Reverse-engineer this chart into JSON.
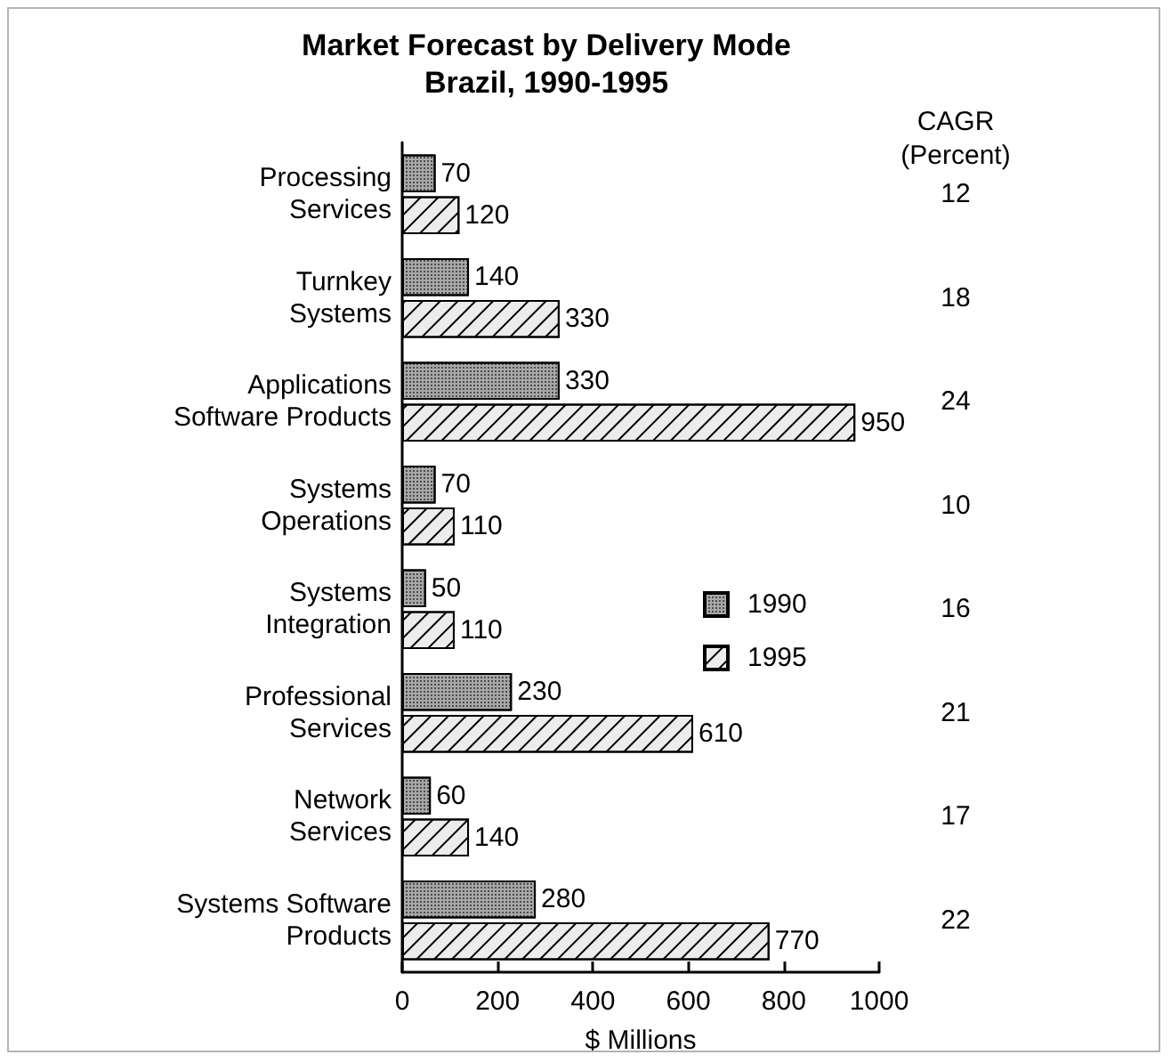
{
  "chart_data": {
    "type": "bar",
    "orientation": "horizontal",
    "title": "Market Forecast by Delivery Mode",
    "subtitle": "Brazil, 1990-1995",
    "categories": [
      "Processing\nServices",
      "Turnkey\nSystems",
      "Applications\nSoftware Products",
      "Systems\nOperations",
      "Systems\nIntegration",
      "Professional\nServices",
      "Network\nServices",
      "Systems Software\nProducts"
    ],
    "series": [
      {
        "name": "1990",
        "color": "#a8a8a8",
        "values": [
          70,
          140,
          330,
          70,
          50,
          230,
          60,
          280
        ]
      },
      {
        "name": "1995",
        "color": "#ececec",
        "values": [
          120,
          330,
          950,
          110,
          110,
          610,
          140,
          770
        ]
      }
    ],
    "xlabel": "$ Millions",
    "xlim": [
      0,
      1000
    ],
    "xticks": [
      0,
      200,
      400,
      600,
      800,
      1000
    ],
    "data_labels": true,
    "legend": "right",
    "annotations": [
      "CAGR\n(Percent)",
      "12",
      "18",
      "24",
      "10",
      "16",
      "21",
      "17",
      "22"
    ]
  }
}
